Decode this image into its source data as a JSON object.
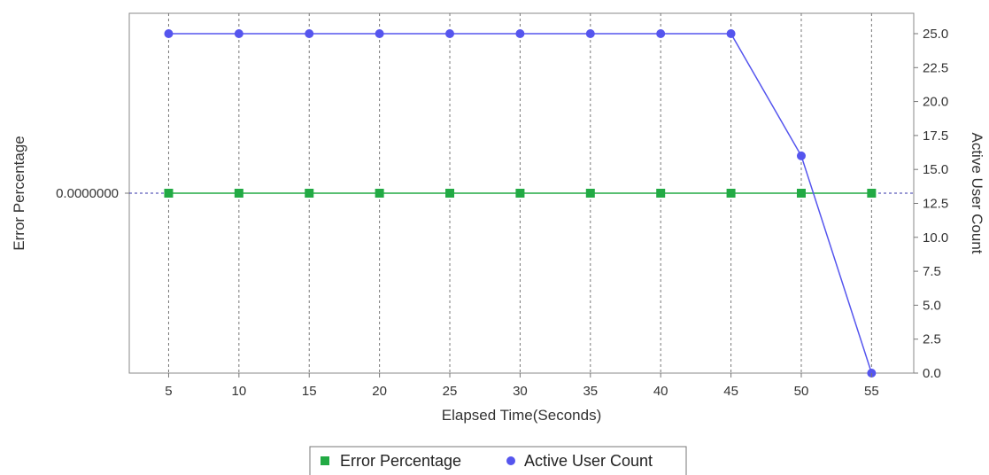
{
  "chart_data": {
    "type": "line",
    "xlabel": "Elapsed Time(Seconds)",
    "ylabel_left": "Error Percentage",
    "ylabel_right": "Active User Count",
    "x": [
      5,
      10,
      15,
      20,
      25,
      30,
      35,
      40,
      45,
      50,
      55
    ],
    "x_ticks": [
      "5",
      "10",
      "15",
      "20",
      "25",
      "30",
      "35",
      "40",
      "45",
      "50",
      "55"
    ],
    "y_left_ticks": [
      "0.0000000"
    ],
    "y_right_ticks": [
      "0.0",
      "2.5",
      "5.0",
      "7.5",
      "10.0",
      "12.5",
      "15.0",
      "17.5",
      "20.0",
      "22.5",
      "25.0"
    ],
    "y_right_range": [
      0,
      26.5
    ],
    "grid": "vertical dashed",
    "legend_position": "bottom",
    "series": [
      {
        "name": "Error Percentage",
        "axis": "left",
        "marker": "square",
        "color": "#22aa44",
        "values": [
          0,
          0,
          0,
          0,
          0,
          0,
          0,
          0,
          0,
          0,
          0
        ]
      },
      {
        "name": "Active User Count",
        "axis": "right",
        "marker": "circle",
        "color": "#5555ee",
        "values": [
          25,
          25,
          25,
          25,
          25,
          25,
          25,
          25,
          25,
          16,
          0
        ]
      }
    ]
  }
}
